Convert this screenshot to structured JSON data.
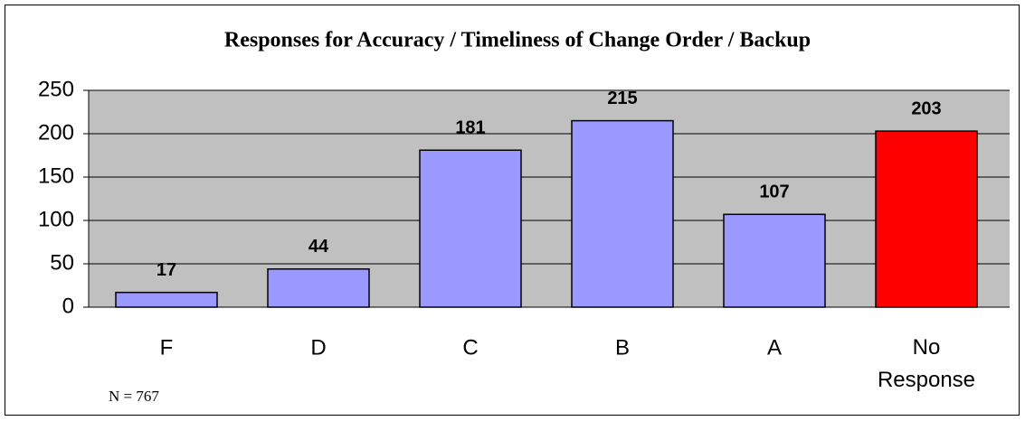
{
  "chart_data": {
    "type": "bar",
    "title": "Responses for Accuracy / Timeliness of Change Order / Backup",
    "annotation": "N = 767",
    "categories": [
      "F",
      "D",
      "C",
      "B",
      "A",
      "No Response"
    ],
    "values": [
      17,
      44,
      181,
      215,
      107,
      203
    ],
    "colors": [
      "#9999ff",
      "#9999ff",
      "#9999ff",
      "#9999ff",
      "#9999ff",
      "#ff0000"
    ],
    "ylim": [
      0,
      250
    ],
    "yticks": [
      0,
      50,
      100,
      150,
      200,
      250
    ],
    "grid": true
  }
}
